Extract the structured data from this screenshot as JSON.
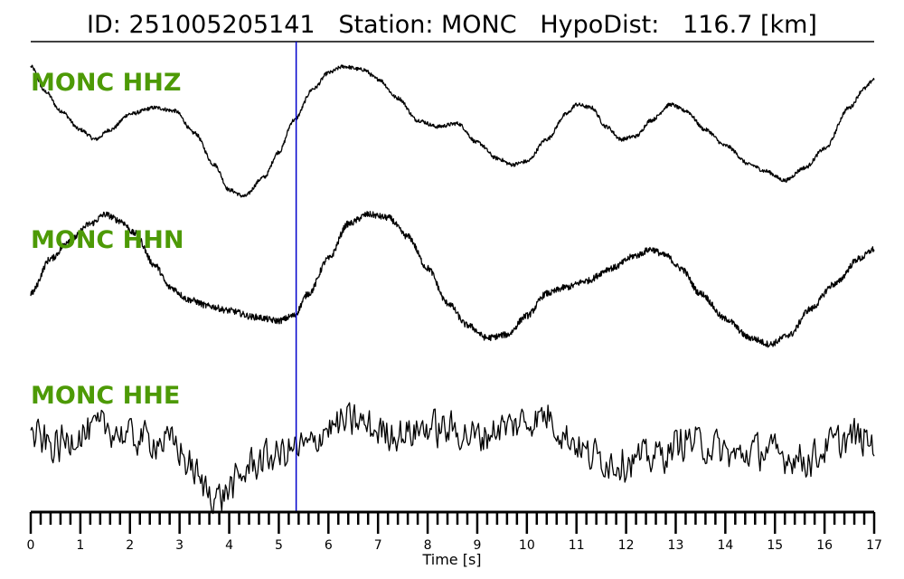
{
  "header": {
    "id_label": "ID:",
    "id_value": "251005205141",
    "station_label": "Station:",
    "station_value": "MONC",
    "hypodist_label": "HypoDist:",
    "hypodist_value": "116.7",
    "hypodist_unit": "[km]"
  },
  "colors": {
    "trace": "#000000",
    "label": "#4d9a06",
    "pick_line": "#0000cc"
  },
  "chart_data": {
    "type": "line",
    "title": "ID: 251005205141   Station: MONC   HypoDist:   116.7 [km]",
    "xlabel": "Time [s]",
    "ylabel": "",
    "xlim": [
      0,
      17
    ],
    "ylim": [
      -1,
      1
    ],
    "x_ticks": [
      0,
      1,
      2,
      3,
      4,
      5,
      6,
      7,
      8,
      9,
      10,
      11,
      12,
      13,
      14,
      15,
      16,
      17
    ],
    "minor_tick_step": 0.2,
    "grid": false,
    "pick_time": 5.35,
    "series": [
      {
        "name": "MONC HHZ",
        "noise": 0.03,
        "keypoints": [
          [
            0,
            0.95
          ],
          [
            0.3,
            0.55
          ],
          [
            0.6,
            0.25
          ],
          [
            1.0,
            -0.05
          ],
          [
            1.3,
            -0.2
          ],
          [
            1.6,
            -0.05
          ],
          [
            2.0,
            0.2
          ],
          [
            2.5,
            0.3
          ],
          [
            2.9,
            0.25
          ],
          [
            3.3,
            -0.1
          ],
          [
            3.7,
            -0.6
          ],
          [
            4.0,
            -1.0
          ],
          [
            4.3,
            -1.1
          ],
          [
            4.7,
            -0.8
          ],
          [
            5.0,
            -0.4
          ],
          [
            5.3,
            0.1
          ],
          [
            5.7,
            0.6
          ],
          [
            6.0,
            0.85
          ],
          [
            6.3,
            0.95
          ],
          [
            6.7,
            0.9
          ],
          [
            7.0,
            0.75
          ],
          [
            7.4,
            0.45
          ],
          [
            7.8,
            0.1
          ],
          [
            8.2,
            0.0
          ],
          [
            8.6,
            0.05
          ],
          [
            9.0,
            -0.25
          ],
          [
            9.4,
            -0.5
          ],
          [
            9.7,
            -0.6
          ],
          [
            10.0,
            -0.55
          ],
          [
            10.4,
            -0.2
          ],
          [
            10.8,
            0.2
          ],
          [
            11.0,
            0.35
          ],
          [
            11.3,
            0.3
          ],
          [
            11.6,
            0.0
          ],
          [
            11.9,
            -0.2
          ],
          [
            12.2,
            -0.15
          ],
          [
            12.5,
            0.1
          ],
          [
            12.9,
            0.35
          ],
          [
            13.2,
            0.25
          ],
          [
            13.6,
            -0.05
          ],
          [
            14.0,
            -0.3
          ],
          [
            14.5,
            -0.6
          ],
          [
            14.8,
            -0.7
          ],
          [
            15.2,
            -0.85
          ],
          [
            15.6,
            -0.65
          ],
          [
            16.0,
            -0.35
          ],
          [
            16.5,
            0.3
          ],
          [
            16.8,
            0.6
          ],
          [
            17,
            0.75
          ]
        ]
      },
      {
        "name": "MONC HHN",
        "noise": 0.05,
        "keypoints": [
          [
            0,
            -0.35
          ],
          [
            0.4,
            0.2
          ],
          [
            0.8,
            0.5
          ],
          [
            1.2,
            0.75
          ],
          [
            1.5,
            0.9
          ],
          [
            1.8,
            0.8
          ],
          [
            2.1,
            0.6
          ],
          [
            2.5,
            0.1
          ],
          [
            2.8,
            -0.25
          ],
          [
            3.2,
            -0.45
          ],
          [
            3.6,
            -0.55
          ],
          [
            4.0,
            -0.62
          ],
          [
            4.5,
            -0.72
          ],
          [
            5.0,
            -0.78
          ],
          [
            5.3,
            -0.7
          ],
          [
            5.6,
            -0.35
          ],
          [
            6.0,
            0.2
          ],
          [
            6.4,
            0.75
          ],
          [
            6.8,
            0.9
          ],
          [
            7.2,
            0.85
          ],
          [
            7.6,
            0.55
          ],
          [
            8.0,
            0.05
          ],
          [
            8.4,
            -0.5
          ],
          [
            8.8,
            -0.85
          ],
          [
            9.2,
            -1.05
          ],
          [
            9.6,
            -1.0
          ],
          [
            10.0,
            -0.7
          ],
          [
            10.4,
            -0.35
          ],
          [
            10.8,
            -0.25
          ],
          [
            11.2,
            -0.15
          ],
          [
            11.7,
            0.05
          ],
          [
            12.2,
            0.25
          ],
          [
            12.5,
            0.35
          ],
          [
            12.8,
            0.25
          ],
          [
            13.1,
            0.05
          ],
          [
            13.5,
            -0.35
          ],
          [
            14.0,
            -0.75
          ],
          [
            14.5,
            -1.05
          ],
          [
            14.9,
            -1.15
          ],
          [
            15.3,
            -1.0
          ],
          [
            15.7,
            -0.6
          ],
          [
            16.2,
            -0.2
          ],
          [
            16.7,
            0.2
          ],
          [
            17,
            0.35
          ]
        ]
      },
      {
        "name": "MONC HHE",
        "noise": 0.35,
        "keypoints": [
          [
            0,
            0.1
          ],
          [
            0.5,
            -0.05
          ],
          [
            1.0,
            0.15
          ],
          [
            1.5,
            0.25
          ],
          [
            2.0,
            0.1
          ],
          [
            2.5,
            0.05
          ],
          [
            2.9,
            0.0
          ],
          [
            3.2,
            -0.35
          ],
          [
            3.5,
            -0.7
          ],
          [
            3.8,
            -0.85
          ],
          [
            4.1,
            -0.65
          ],
          [
            4.5,
            -0.3
          ],
          [
            4.9,
            -0.2
          ],
          [
            5.3,
            -0.1
          ],
          [
            5.6,
            -0.05
          ],
          [
            6.0,
            0.25
          ],
          [
            6.5,
            0.35
          ],
          [
            7.0,
            0.2
          ],
          [
            7.5,
            0.15
          ],
          [
            8.0,
            0.25
          ],
          [
            8.5,
            0.2
          ],
          [
            9.0,
            0.1
          ],
          [
            9.5,
            0.25
          ],
          [
            10.0,
            0.35
          ],
          [
            10.4,
            0.45
          ],
          [
            10.8,
            0.1
          ],
          [
            11.3,
            -0.2
          ],
          [
            11.8,
            -0.3
          ],
          [
            12.3,
            -0.25
          ],
          [
            12.8,
            -0.15
          ],
          [
            13.2,
            0.05
          ],
          [
            13.7,
            -0.05
          ],
          [
            14.2,
            -0.2
          ],
          [
            14.7,
            -0.1
          ],
          [
            15.2,
            -0.2
          ],
          [
            15.7,
            -0.25
          ],
          [
            16.2,
            0.0
          ],
          [
            16.6,
            0.1
          ],
          [
            17,
            0.0
          ]
        ]
      }
    ]
  }
}
